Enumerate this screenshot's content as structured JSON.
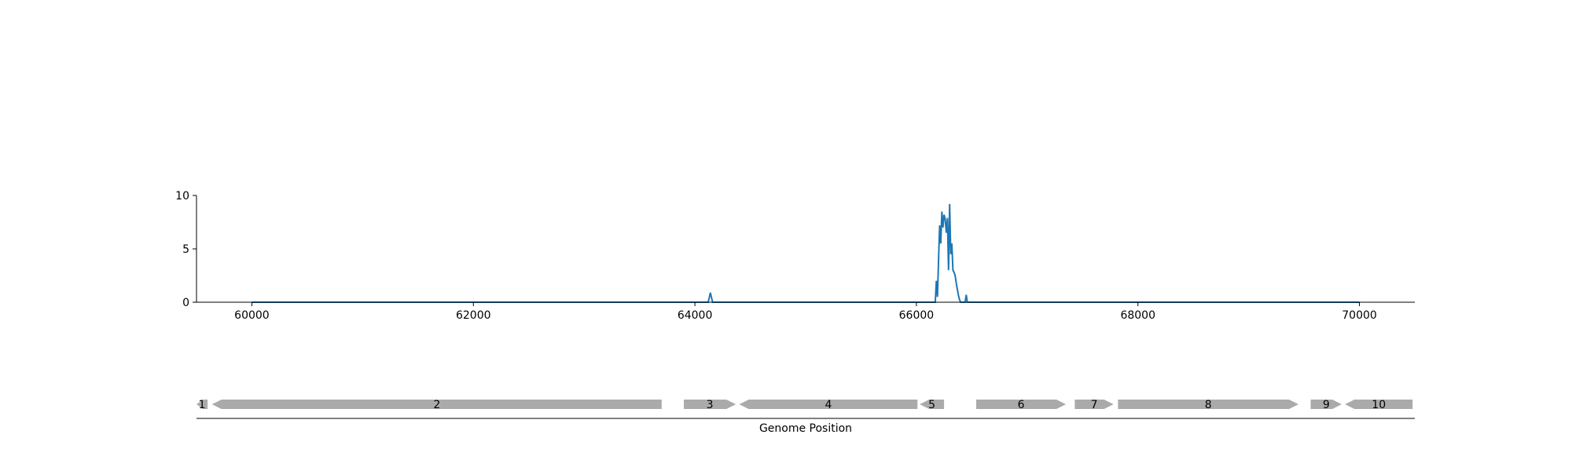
{
  "chart_data": [
    {
      "type": "line",
      "title": "",
      "xlabel": "",
      "ylabel": "",
      "xlim": [
        59500,
        70500
      ],
      "ylim": [
        0,
        10
      ],
      "xticks": [
        60000,
        62000,
        64000,
        66000,
        68000,
        70000
      ],
      "yticks": [
        0,
        5,
        10
      ],
      "grid": false,
      "color": "#1f77b4",
      "series": [
        {
          "x": [
            60000,
            64120,
            64140,
            64160,
            66170,
            66180,
            66190,
            66200,
            66210,
            66220,
            66230,
            66240,
            66250,
            66260,
            66270,
            66280,
            66290,
            66300,
            66310,
            66320,
            66330,
            66340,
            66350,
            66360,
            66370,
            66380,
            66390,
            66400,
            66440,
            66450,
            66460,
            70000
          ],
          "y": [
            0,
            0,
            0.9,
            0,
            0,
            2.0,
            0.5,
            4.0,
            7.2,
            5.5,
            8.5,
            7.0,
            8.2,
            7.8,
            6.5,
            7.9,
            3.0,
            9.2,
            4.5,
            5.5,
            3.0,
            2.8,
            2.5,
            1.8,
            1.2,
            0.6,
            0.2,
            0,
            0,
            0.7,
            0,
            0
          ]
        }
      ]
    },
    {
      "type": "gene-track",
      "xlabel": "Genome Position",
      "xlim": [
        59500,
        70500
      ],
      "color": "#aaaaaa",
      "genes": [
        {
          "label": "1",
          "start": 59500,
          "end": 59600,
          "strand": "-"
        },
        {
          "label": "2",
          "start": 59640,
          "end": 63700,
          "strand": "-"
        },
        {
          "label": "3",
          "start": 63900,
          "end": 64370,
          "strand": "+"
        },
        {
          "label": "4",
          "start": 64400,
          "end": 66010,
          "strand": "-"
        },
        {
          "label": "5",
          "start": 66030,
          "end": 66250,
          "strand": "-"
        },
        {
          "label": "6",
          "start": 66540,
          "end": 67350,
          "strand": "+"
        },
        {
          "label": "7",
          "start": 67430,
          "end": 67780,
          "strand": "+"
        },
        {
          "label": "8",
          "start": 67820,
          "end": 69450,
          "strand": "+"
        },
        {
          "label": "9",
          "start": 69560,
          "end": 69840,
          "strand": "+"
        },
        {
          "label": "10",
          "start": 69870,
          "end": 70480,
          "strand": "-"
        }
      ]
    }
  ]
}
